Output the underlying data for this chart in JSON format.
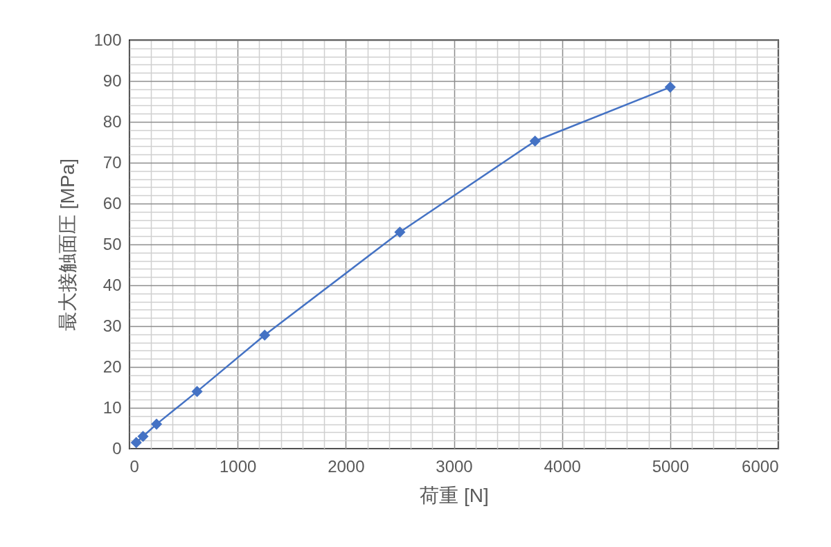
{
  "chart_data": {
    "type": "line",
    "xlabel": "荷重 [N]",
    "ylabel": "最大接触面圧 [MPa]",
    "x": [
      62.5,
      125,
      250,
      625,
      1250,
      2500,
      3750,
      5000
    ],
    "series": [
      {
        "color": "#4472c4",
        "values": [
          1.5,
          3.0,
          6.0,
          14.0,
          27.8,
          53.0,
          75.3,
          88.5
        ]
      }
    ],
    "xlim": [
      0,
      6000
    ],
    "ylim": [
      0,
      100
    ],
    "xticks": [
      0,
      {
        "value": 200,
        "label": null
      },
      {
        "value": 400,
        "label": null
      },
      {
        "value": 600,
        "label": null
      },
      {
        "value": 800,
        "label": null
      },
      1000,
      {
        "value": 1200,
        "label": null
      },
      {
        "value": 1400,
        "label": null
      },
      {
        "value": 1600,
        "label": null
      },
      {
        "value": 1800,
        "label": null
      },
      2000,
      {
        "value": 2200,
        "label": null
      },
      {
        "value": 2400,
        "label": null
      },
      {
        "value": 2600,
        "label": null
      },
      {
        "value": 2800,
        "label": null
      },
      3000,
      {
        "value": 3200,
        "label": null
      },
      {
        "value": 3400,
        "label": null
      },
      {
        "value": 3600,
        "label": null
      },
      {
        "value": 3800,
        "label": null
      },
      4000,
      {
        "value": 4200,
        "label": null
      },
      {
        "value": 4400,
        "label": null
      },
      {
        "value": 4600,
        "label": null
      },
      {
        "value": 4800,
        "label": null
      },
      5000,
      {
        "value": 5200,
        "label": null
      },
      {
        "value": 5400,
        "label": null
      },
      {
        "value": 5600,
        "label": null
      },
      {
        "value": 5800,
        "label": null
      },
      6000
    ],
    "yticks": [
      0,
      {
        "value": 2,
        "label": null
      },
      {
        "value": 4,
        "label": null
      },
      {
        "value": 6,
        "label": null
      },
      {
        "value": 8,
        "label": null
      },
      10,
      {
        "value": 12,
        "label": null
      },
      {
        "value": 14,
        "label": null
      },
      {
        "value": 16,
        "label": null
      },
      {
        "value": 18,
        "label": null
      },
      20,
      {
        "value": 22,
        "label": null
      },
      {
        "value": 24,
        "label": null
      },
      {
        "value": 26,
        "label": null
      },
      {
        "value": 28,
        "label": null
      },
      30,
      {
        "value": 32,
        "label": null
      },
      {
        "value": 34,
        "label": null
      },
      {
        "value": 36,
        "label": null
      },
      {
        "value": 38,
        "label": null
      },
      40,
      {
        "value": 42,
        "label": null
      },
      {
        "value": 44,
        "label": null
      },
      {
        "value": 46,
        "label": null
      },
      {
        "value": 48,
        "label": null
      },
      50,
      {
        "value": 52,
        "label": null
      },
      {
        "value": 54,
        "label": null
      },
      {
        "value": 56,
        "label": null
      },
      {
        "value": 58,
        "label": null
      },
      60,
      {
        "value": 62,
        "label": null
      },
      {
        "value": 64,
        "label": null
      },
      {
        "value": 66,
        "label": null
      },
      {
        "value": 68,
        "label": null
      },
      70,
      {
        "value": 72,
        "label": null
      },
      {
        "value": 74,
        "label": null
      },
      {
        "value": 76,
        "label": null
      },
      {
        "value": 78,
        "label": null
      },
      80,
      {
        "value": 82,
        "label": null
      },
      {
        "value": 84,
        "label": null
      },
      {
        "value": 86,
        "label": null
      },
      {
        "value": 88,
        "label": null
      },
      90,
      {
        "value": 92,
        "label": null
      },
      {
        "value": 94,
        "label": null
      },
      {
        "value": 96,
        "label": null
      },
      {
        "value": 98,
        "label": null
      },
      100
    ],
    "grid": true,
    "marker": "diamond",
    "line_style": "solid",
    "legend": false
  }
}
